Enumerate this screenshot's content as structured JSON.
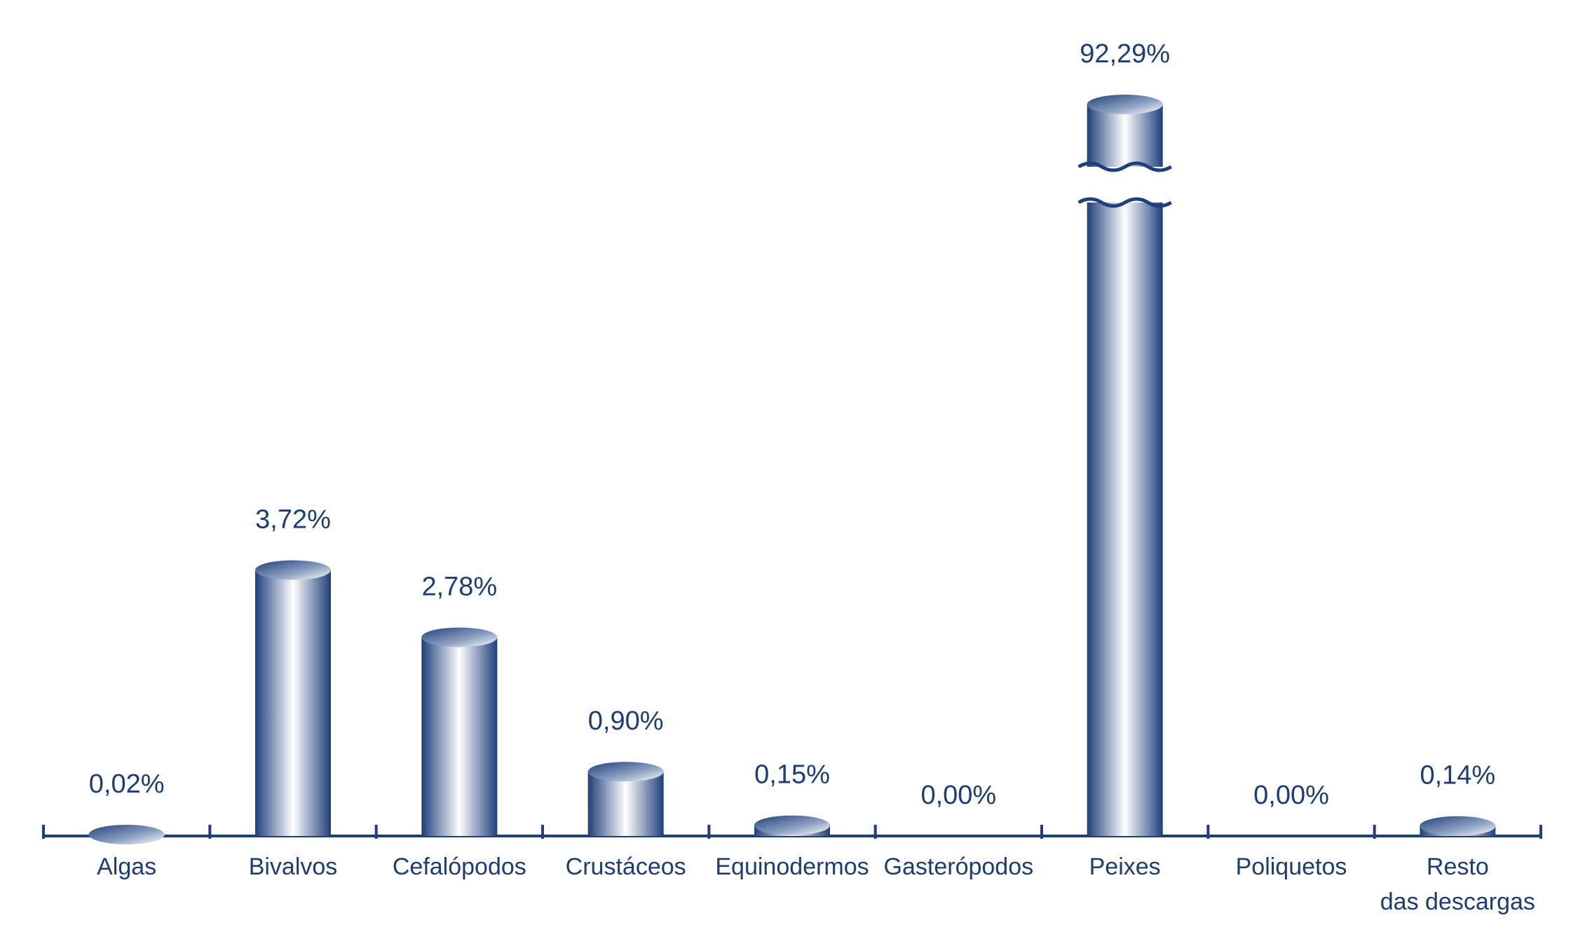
{
  "chart_data": {
    "type": "bar",
    "categories": [
      "Algas",
      "Bivalvos",
      "Cefalópodos",
      "Crustáceos",
      "Equinodermos",
      "Gasterópodos",
      "Peixes",
      "Poliquetos",
      "Resto\ndas descargas"
    ],
    "values": [
      0.02,
      3.72,
      2.78,
      0.9,
      0.15,
      0.0,
      92.29,
      0.0,
      0.14
    ],
    "value_labels": [
      "0,02%",
      "3,72%",
      "2,78%",
      "0,90%",
      "0,15%",
      "0,00%",
      "92,29%",
      "0,00%",
      "0,14%"
    ],
    "color": "#1f3f7a"
  }
}
